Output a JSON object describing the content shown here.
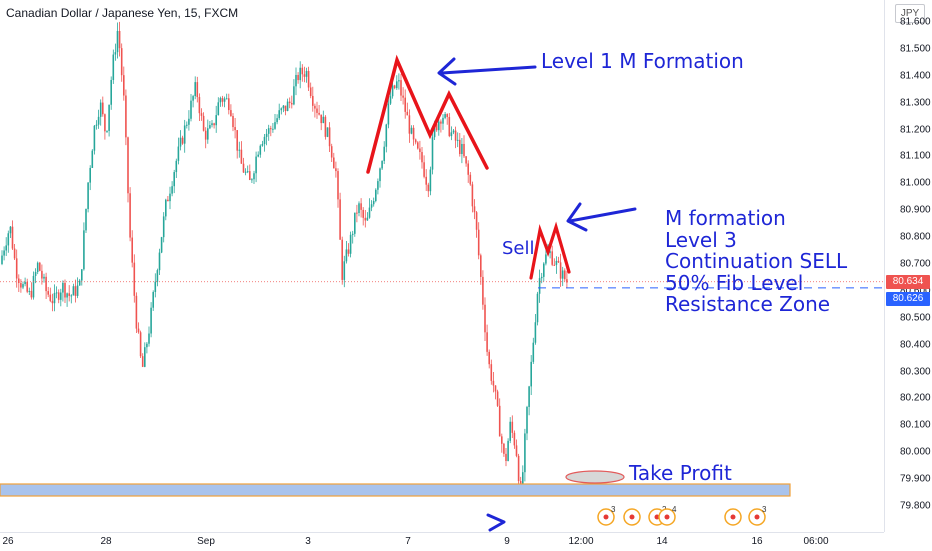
{
  "header": {
    "title": "Canadian Dollar / Japanese Yen, 15, FXCM",
    "currency_button": "JPY"
  },
  "price_axis": {
    "ticks": [
      "81.600",
      "81.500",
      "81.400",
      "81.300",
      "81.200",
      "81.100",
      "81.000",
      "80.900",
      "80.800",
      "80.700",
      "80.600",
      "80.500",
      "80.400",
      "80.300",
      "80.200",
      "80.100",
      "80.000",
      "79.900",
      "79.800"
    ],
    "tag_last": "80.634",
    "tag_level": "80.626"
  },
  "time_axis": {
    "ticks": [
      "26",
      "28",
      "Sep",
      "3",
      "7",
      "9",
      "12:00",
      "14",
      "16",
      "06:00"
    ]
  },
  "annotations": {
    "level1": "Level 1 M Formation",
    "sell": "Sell",
    "m_formation_lines": [
      "M formation",
      "Level 3",
      "Continuation SELL",
      "50% Fib Level",
      "Resistance Zone"
    ],
    "take_profit": "Take Profit"
  },
  "chart_data": {
    "type": "candlestick",
    "title": "Canadian Dollar / Japanese Yen, 15, FXCM",
    "ylim": [
      79.75,
      81.65
    ],
    "x_ticks": [
      "26",
      "28",
      "Sep",
      "3",
      "7",
      "9",
      "12:00",
      "14",
      "16",
      "06:00"
    ],
    "close_path": [
      {
        "x": 0,
        "y": 80.7
      },
      {
        "x": 5,
        "y": 80.78
      },
      {
        "x": 10,
        "y": 80.84
      },
      {
        "x": 16,
        "y": 80.68
      },
      {
        "x": 22,
        "y": 80.62
      },
      {
        "x": 30,
        "y": 80.58
      },
      {
        "x": 38,
        "y": 80.7
      },
      {
        "x": 46,
        "y": 80.6
      },
      {
        "x": 54,
        "y": 80.56
      },
      {
        "x": 62,
        "y": 80.62
      },
      {
        "x": 70,
        "y": 80.58
      },
      {
        "x": 80,
        "y": 80.62
      },
      {
        "x": 88,
        "y": 81.0
      },
      {
        "x": 94,
        "y": 81.2
      },
      {
        "x": 100,
        "y": 81.3
      },
      {
        "x": 106,
        "y": 81.18
      },
      {
        "x": 112,
        "y": 81.42
      },
      {
        "x": 118,
        "y": 81.58
      },
      {
        "x": 124,
        "y": 81.3
      },
      {
        "x": 130,
        "y": 80.8
      },
      {
        "x": 136,
        "y": 80.5
      },
      {
        "x": 142,
        "y": 80.3
      },
      {
        "x": 150,
        "y": 80.48
      },
      {
        "x": 158,
        "y": 80.72
      },
      {
        "x": 166,
        "y": 80.92
      },
      {
        "x": 176,
        "y": 81.08
      },
      {
        "x": 186,
        "y": 81.22
      },
      {
        "x": 196,
        "y": 81.36
      },
      {
        "x": 204,
        "y": 81.18
      },
      {
        "x": 212,
        "y": 81.2
      },
      {
        "x": 220,
        "y": 81.32
      },
      {
        "x": 230,
        "y": 81.3
      },
      {
        "x": 240,
        "y": 81.08
      },
      {
        "x": 250,
        "y": 81.0
      },
      {
        "x": 260,
        "y": 81.16
      },
      {
        "x": 270,
        "y": 81.2
      },
      {
        "x": 280,
        "y": 81.26
      },
      {
        "x": 290,
        "y": 81.3
      },
      {
        "x": 298,
        "y": 81.4
      },
      {
        "x": 306,
        "y": 81.42
      },
      {
        "x": 314,
        "y": 81.3
      },
      {
        "x": 322,
        "y": 81.24
      },
      {
        "x": 330,
        "y": 81.15
      },
      {
        "x": 336,
        "y": 81.04
      },
      {
        "x": 342,
        "y": 80.66
      },
      {
        "x": 350,
        "y": 80.78
      },
      {
        "x": 358,
        "y": 80.92
      },
      {
        "x": 366,
        "y": 80.84
      },
      {
        "x": 374,
        "y": 80.96
      },
      {
        "x": 382,
        "y": 81.1
      },
      {
        "x": 390,
        "y": 81.32
      },
      {
        "x": 398,
        "y": 81.38
      },
      {
        "x": 406,
        "y": 81.26
      },
      {
        "x": 414,
        "y": 81.14
      },
      {
        "x": 422,
        "y": 81.08
      },
      {
        "x": 428,
        "y": 80.99
      },
      {
        "x": 434,
        "y": 81.2
      },
      {
        "x": 442,
        "y": 81.26
      },
      {
        "x": 452,
        "y": 81.18
      },
      {
        "x": 462,
        "y": 81.12
      },
      {
        "x": 470,
        "y": 81.0
      },
      {
        "x": 476,
        "y": 80.84
      },
      {
        "x": 482,
        "y": 80.6
      },
      {
        "x": 488,
        "y": 80.34
      },
      {
        "x": 494,
        "y": 80.24
      },
      {
        "x": 500,
        "y": 80.08
      },
      {
        "x": 505,
        "y": 79.95
      },
      {
        "x": 510,
        "y": 80.1
      },
      {
        "x": 516,
        "y": 80.02
      },
      {
        "x": 521,
        "y": 79.83
      },
      {
        "x": 526,
        "y": 80.1
      },
      {
        "x": 532,
        "y": 80.36
      },
      {
        "x": 538,
        "y": 80.62
      },
      {
        "x": 544,
        "y": 80.72
      },
      {
        "x": 550,
        "y": 80.74
      },
      {
        "x": 556,
        "y": 80.7
      },
      {
        "x": 562,
        "y": 80.66
      },
      {
        "x": 568,
        "y": 80.63
      }
    ],
    "levels": [
      {
        "name": "last",
        "value": 80.634
      },
      {
        "name": "level",
        "value": 80.626
      }
    ],
    "zones": [
      {
        "name": "take-profit-zone",
        "from": 79.86,
        "to": 79.9
      }
    ]
  },
  "colors": {
    "up": "#26a69a",
    "down": "#ef5350",
    "annotation_blue": "#1e26d6",
    "m_line_red": "#e8141a",
    "last_price_tag": "#ef5350",
    "level_tag": "#2962ff",
    "zone_fill": "#a9c3ec",
    "zone_border": "#f0a13a"
  }
}
